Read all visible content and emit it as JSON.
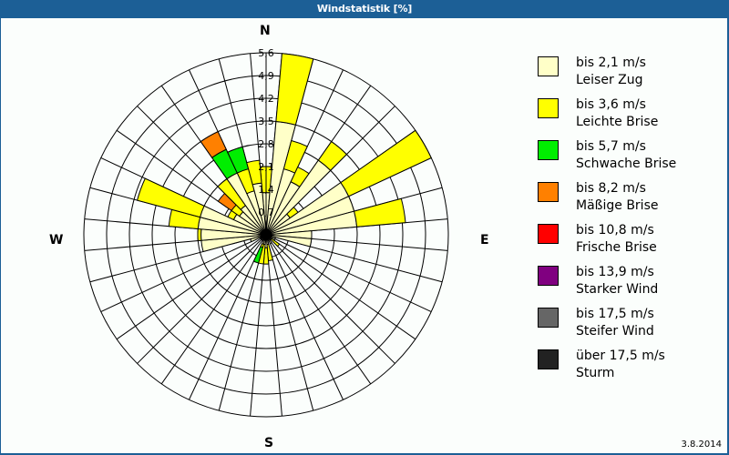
{
  "window": {
    "title": "Windstatistik [%]"
  },
  "compass": {
    "n": "N",
    "e": "E",
    "s": "S",
    "w": "W"
  },
  "footer": {
    "date": "3.8.2014"
  },
  "legend": {
    "items": [
      {
        "range": "bis 2,1 m/s",
        "name": "Leiser Zug",
        "color": "#ffffc8"
      },
      {
        "range": "bis 3,6 m/s",
        "name": "Leichte Brise",
        "color": "#ffff00"
      },
      {
        "range": "bis 5,7 m/s",
        "name": "Schwache Brise",
        "color": "#00ee00"
      },
      {
        "range": "bis 8,2 m/s",
        "name": "Mäßige Brise",
        "color": "#ff8000"
      },
      {
        "range": "bis 10,8 m/s",
        "name": "Frische Brise",
        "color": "#ff0000"
      },
      {
        "range": "bis 13,9 m/s",
        "name": "Starker Wind",
        "color": "#800080"
      },
      {
        "range": "bis 17,5 m/s",
        "name": "Steifer Wind",
        "color": "#666666"
      },
      {
        "range": "über 17,5 m/s",
        "name": "Sturm",
        "color": "#222222"
      }
    ]
  },
  "chart_data": {
    "type": "polar-stacked-bar",
    "title": "Windstatistik [%]",
    "radial_unit": "%",
    "radial_ticks": [
      "0,7",
      "1,4",
      "2,1",
      "2,8",
      "3,5",
      "4,2",
      "4,9",
      "5,6"
    ],
    "rmax": 5.6,
    "sector_width_deg": 10,
    "series_names": [
      "Leiser Zug",
      "Leichte Brise",
      "Schwache Brise",
      "Mäßige Brise",
      "Frische Brise",
      "Starker Wind",
      "Steifer Wind",
      "Sturm"
    ],
    "directions_deg": [
      0,
      10,
      20,
      30,
      40,
      50,
      60,
      70,
      80,
      90,
      100,
      110,
      120,
      130,
      140,
      150,
      160,
      170,
      180,
      190,
      200,
      210,
      220,
      230,
      240,
      250,
      260,
      270,
      280,
      290,
      300,
      310,
      320,
      330,
      340,
      350
    ],
    "cumulative": [
      [
        1.3,
        2.1
      ],
      [
        3.5,
        5.6
      ],
      [
        2.1,
        3.0
      ],
      [
        1.8,
        2.3
      ],
      [
        2.8,
        3.5
      ],
      [
        0.9,
        1.2
      ],
      [
        2.8,
        5.6
      ],
      [
        2.8,
        2.8
      ],
      [
        2.8,
        4.3
      ],
      [
        1.4,
        1.4
      ],
      [
        1.4,
        1.4
      ],
      [
        0.3,
        0.3
      ],
      [
        0.3,
        0.3
      ],
      [
        0.2,
        0.5
      ],
      [
        0.2,
        0.2
      ],
      [
        0.3,
        0.3
      ],
      [
        0.2,
        0.2
      ],
      [
        0.3,
        0.8
      ],
      [
        0.4,
        0.9
      ],
      [
        0.3,
        0.9
      ],
      [
        0.3,
        0.4,
        0.9
      ],
      [
        0.2,
        0.2
      ],
      [
        0.2,
        0.2
      ],
      [
        0.2,
        0.2
      ],
      [
        0.2,
        0.2
      ],
      [
        0.5,
        0.5
      ],
      [
        2.0,
        2.0
      ],
      [
        2.0,
        2.1
      ],
      [
        2.1,
        3.0
      ],
      [
        2.1,
        4.1
      ],
      [
        1.1,
        1.3
      ],
      [
        1.0,
        1.3,
        1.3,
        1.8
      ],
      [
        1.1,
        2.1
      ],
      [
        2.1,
        2.1,
        2.9,
        3.5
      ],
      [
        1.4,
        2.1,
        2.8
      ],
      [
        1.6,
        2.3
      ]
    ]
  }
}
